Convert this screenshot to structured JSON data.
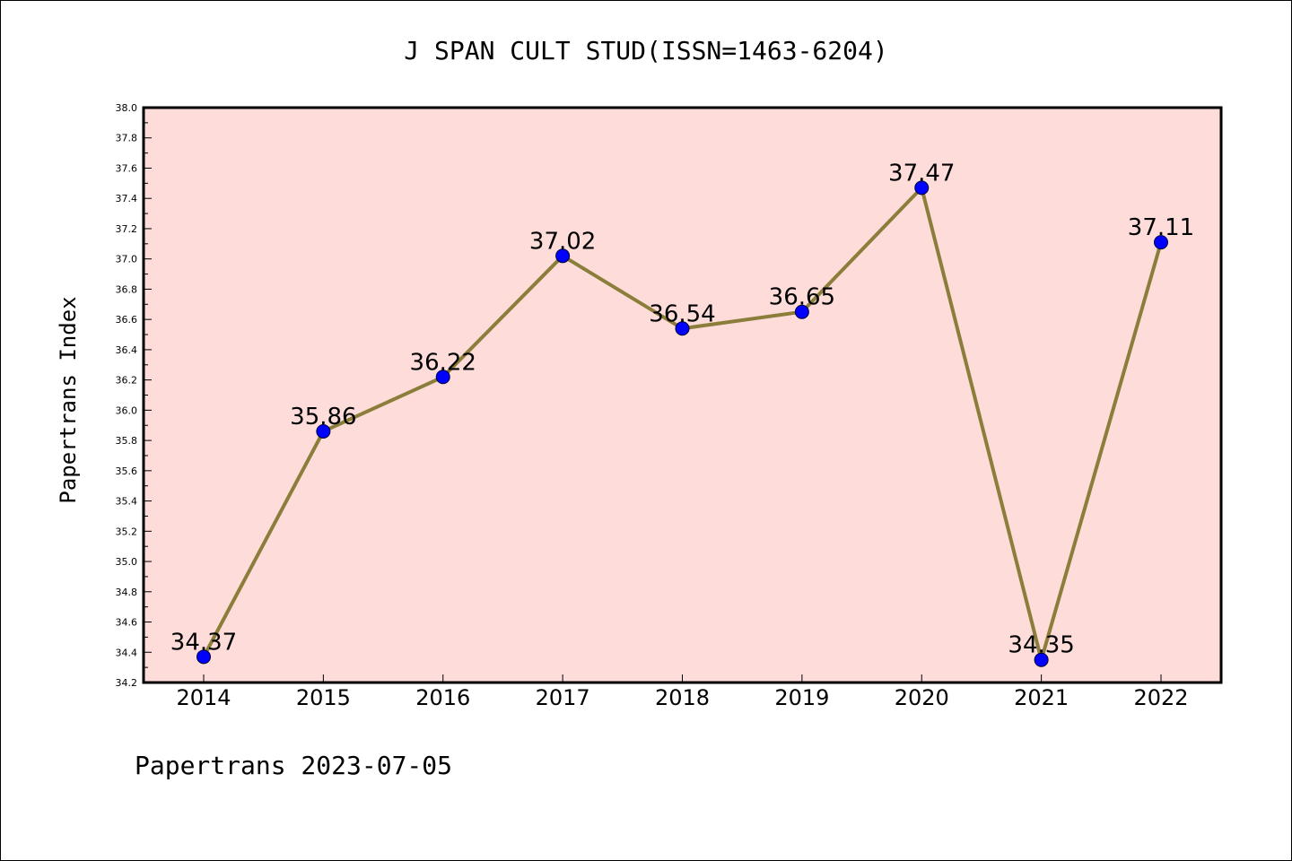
{
  "footer": "Papertrans 2023-07-05",
  "colors": {
    "plot_background": "#fddcda",
    "line": "#8b7d3a",
    "marker": "#0000ff",
    "axis": "#000000"
  },
  "chart_data": {
    "type": "line",
    "title": "J SPAN CULT STUD(ISSN=1463-6204)",
    "xlabel": "",
    "ylabel": "Papertrans Index",
    "categories": [
      "2014",
      "2015",
      "2016",
      "2017",
      "2018",
      "2019",
      "2020",
      "2021",
      "2022"
    ],
    "series": [
      {
        "values": [
          34.37,
          35.86,
          36.22,
          37.02,
          36.54,
          36.65,
          37.47,
          34.35,
          37.11
        ],
        "labels": [
          "34.37",
          "35.86",
          "36.22",
          "37.02",
          "36.54",
          "36.65",
          "37.47",
          "34.35",
          "37.11"
        ]
      }
    ],
    "ylim": [
      34.2,
      38.0
    ],
    "yticks": [
      "34.2",
      "34.4",
      "34.6",
      "34.8",
      "35.0",
      "35.2",
      "35.4",
      "35.6",
      "35.8",
      "36.0",
      "36.2",
      "36.4",
      "36.6",
      "36.8",
      "37.0",
      "37.2",
      "37.4",
      "37.6",
      "37.8",
      "38.0"
    ],
    "grid": false,
    "legend": "none",
    "marker": "circle"
  }
}
